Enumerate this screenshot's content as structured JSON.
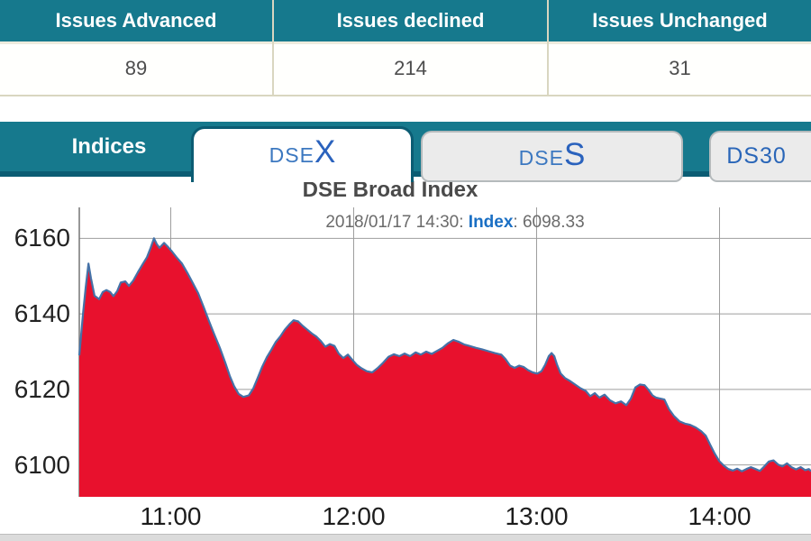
{
  "summary_table": {
    "columns": [
      {
        "header": "Issues Advanced",
        "value": "89"
      },
      {
        "header": "Issues declined",
        "value": "214"
      },
      {
        "header": "Issues Unchanged",
        "value": "31"
      }
    ]
  },
  "tabs": {
    "panel_label": "Indices",
    "items": [
      {
        "prefix": "DSE",
        "suffix": "X",
        "active": true
      },
      {
        "prefix": "DSE",
        "suffix": "S",
        "active": false
      },
      {
        "prefix": "DS30",
        "suffix": "",
        "active": false
      }
    ]
  },
  "colors": {
    "teal": "#16798d",
    "teal_dark": "#0b5c73",
    "cream_border": "#d9d6c0",
    "tab_gray": "#ebebeb",
    "tab_text_blue": "#2a66b8",
    "grid": "#9e9e9e",
    "axis_line": "#757575",
    "area_red": "#e8112d",
    "line_blue": "#4572a7"
  },
  "chart_data": {
    "type": "area",
    "title": "DSE Broad Index",
    "subtitle": {
      "datetime_part": "2018/01/17 14:30:",
      "index_label": "Index",
      "value_part": ": 6098.33"
    },
    "xlabel": "",
    "ylabel": "",
    "grid": true,
    "legend": "none",
    "x_start_time": "10:30",
    "x_end_time": "14:30",
    "x_ticks": [
      {
        "label": "11:00",
        "min": 30
      },
      {
        "label": "12:00",
        "min": 90
      },
      {
        "label": "13:00",
        "min": 150
      },
      {
        "label": "14:00",
        "min": 210
      }
    ],
    "y_ticks": [
      6100,
      6120,
      6140,
      6160
    ],
    "ylim": [
      6092,
      6168
    ],
    "last_value": 6098.33,
    "series": [
      {
        "name": "Index",
        "x_unit": "minutes_after_10:30",
        "points": [
          [
            0,
            6129
          ],
          [
            1.2,
            6140
          ],
          [
            2.1,
            6147
          ],
          [
            3,
            6153.3
          ],
          [
            3.8,
            6149.5
          ],
          [
            5,
            6144.8
          ],
          [
            6.5,
            6143.9
          ],
          [
            7.7,
            6145.8
          ],
          [
            8.9,
            6146.3
          ],
          [
            10.1,
            6145.8
          ],
          [
            11.2,
            6144.7
          ],
          [
            12.4,
            6146
          ],
          [
            13.6,
            6148.3
          ],
          [
            15.1,
            6148.6
          ],
          [
            16.3,
            6147.4
          ],
          [
            17.7,
            6148.8
          ],
          [
            19.2,
            6151
          ],
          [
            20.7,
            6153
          ],
          [
            22.2,
            6155
          ],
          [
            23.4,
            6157.5
          ],
          [
            24.5,
            6160
          ],
          [
            25.4,
            6158.5
          ],
          [
            26.3,
            6157.5
          ],
          [
            27.8,
            6158.8
          ],
          [
            29,
            6157.8
          ],
          [
            30.4,
            6156.5
          ],
          [
            31.9,
            6155
          ],
          [
            33.7,
            6153.3
          ],
          [
            35.5,
            6150.8
          ],
          [
            37.2,
            6148.2
          ],
          [
            39,
            6145.5
          ],
          [
            40.8,
            6141.8
          ],
          [
            42.6,
            6138
          ],
          [
            44.3,
            6134.5
          ],
          [
            46.1,
            6131
          ],
          [
            47.9,
            6127
          ],
          [
            49.4,
            6123.5
          ],
          [
            50.8,
            6120.8
          ],
          [
            52.3,
            6118.8
          ],
          [
            53.8,
            6118
          ],
          [
            55.6,
            6118.4
          ],
          [
            57.1,
            6120.3
          ],
          [
            58.5,
            6123
          ],
          [
            60,
            6126
          ],
          [
            61.5,
            6128.5
          ],
          [
            63,
            6130.5
          ],
          [
            64.4,
            6132.5
          ],
          [
            65.9,
            6134
          ],
          [
            67.4,
            6135.8
          ],
          [
            68.9,
            6137.2
          ],
          [
            70.3,
            6138.3
          ],
          [
            71.8,
            6138
          ],
          [
            73.3,
            6136.8
          ],
          [
            74.8,
            6135.8
          ],
          [
            76.3,
            6134.8
          ],
          [
            77.7,
            6134
          ],
          [
            79.2,
            6132.8
          ],
          [
            80.7,
            6131.3
          ],
          [
            82.2,
            6132
          ],
          [
            83.7,
            6131.5
          ],
          [
            85.1,
            6129.5
          ],
          [
            86.6,
            6128.3
          ],
          [
            88.1,
            6129.2
          ],
          [
            89.6,
            6127.8
          ],
          [
            91,
            6126.5
          ],
          [
            92.5,
            6125.6
          ],
          [
            94.3,
            6124.8
          ],
          [
            96.1,
            6124.5
          ],
          [
            97.8,
            6125.6
          ],
          [
            99.6,
            6127
          ],
          [
            101.4,
            6128.6
          ],
          [
            103.2,
            6129.3
          ],
          [
            105,
            6128.8
          ],
          [
            106.7,
            6129.5
          ],
          [
            108.5,
            6128.8
          ],
          [
            110.3,
            6129.8
          ],
          [
            112,
            6129.2
          ],
          [
            113.8,
            6130
          ],
          [
            115.6,
            6129.4
          ],
          [
            117.4,
            6130.2
          ],
          [
            119.1,
            6131
          ],
          [
            120.9,
            6132.2
          ],
          [
            122.7,
            6133.1
          ],
          [
            124.5,
            6132.6
          ],
          [
            126.2,
            6131.9
          ],
          [
            128,
            6131.5
          ],
          [
            130.1,
            6131
          ],
          [
            132.1,
            6130.6
          ],
          [
            134.2,
            6130.1
          ],
          [
            136.3,
            6129.6
          ],
          [
            138.4,
            6129.2
          ],
          [
            139.8,
            6128
          ],
          [
            141.3,
            6126.3
          ],
          [
            142.8,
            6125.7
          ],
          [
            144.3,
            6126.3
          ],
          [
            145.8,
            6125.9
          ],
          [
            147.2,
            6125.1
          ],
          [
            148.7,
            6124.5
          ],
          [
            150.2,
            6124.2
          ],
          [
            151.6,
            6124.8
          ],
          [
            152.8,
            6126.5
          ],
          [
            154,
            6128.8
          ],
          [
            154.9,
            6129.6
          ],
          [
            155.8,
            6128.8
          ],
          [
            156.7,
            6126.5
          ],
          [
            157.9,
            6124.2
          ],
          [
            159.3,
            6123
          ],
          [
            160.8,
            6122.3
          ],
          [
            162.6,
            6121.3
          ],
          [
            164.4,
            6120.3
          ],
          [
            166.1,
            6119.6
          ],
          [
            167.6,
            6118.2
          ],
          [
            169.1,
            6119
          ],
          [
            170.6,
            6117.8
          ],
          [
            172.3,
            6118.6
          ],
          [
            174.1,
            6117.1
          ],
          [
            175.9,
            6116.3
          ],
          [
            177.7,
            6116.8
          ],
          [
            179.4,
            6115.8
          ],
          [
            180.9,
            6117.5
          ],
          [
            182.4,
            6120.5
          ],
          [
            183.9,
            6121.3
          ],
          [
            185.4,
            6121.1
          ],
          [
            186.8,
            6119.8
          ],
          [
            188,
            6118.4
          ],
          [
            189.2,
            6117.8
          ],
          [
            190.4,
            6117.6
          ],
          [
            191.9,
            6117.3
          ],
          [
            193.4,
            6114.8
          ],
          [
            195.1,
            6112.9
          ],
          [
            196.9,
            6111.5
          ],
          [
            198.7,
            6110.9
          ],
          [
            200.4,
            6110.6
          ],
          [
            202.2,
            6109.9
          ],
          [
            204,
            6108.9
          ],
          [
            205.5,
            6107.7
          ],
          [
            206.9,
            6105.4
          ],
          [
            208.4,
            6103
          ],
          [
            209.9,
            6101
          ],
          [
            211.4,
            6099.8
          ],
          [
            212.9,
            6098.9
          ],
          [
            214.4,
            6098.5
          ],
          [
            215.8,
            6099
          ],
          [
            217.3,
            6098.3
          ],
          [
            218.8,
            6098.9
          ],
          [
            220.3,
            6099.4
          ],
          [
            221.8,
            6098.9
          ],
          [
            223.2,
            6098.4
          ],
          [
            224.7,
            6099.6
          ],
          [
            226.2,
            6100.9
          ],
          [
            227.7,
            6101.2
          ],
          [
            229.2,
            6100.1
          ],
          [
            230.6,
            6099.6
          ],
          [
            232.1,
            6100.4
          ],
          [
            233.6,
            6099.4
          ],
          [
            235.1,
            6098.8
          ],
          [
            236.6,
            6099.4
          ],
          [
            238.1,
            6098.6
          ],
          [
            239.3,
            6098.9
          ],
          [
            240,
            6098.33
          ]
        ]
      }
    ]
  }
}
